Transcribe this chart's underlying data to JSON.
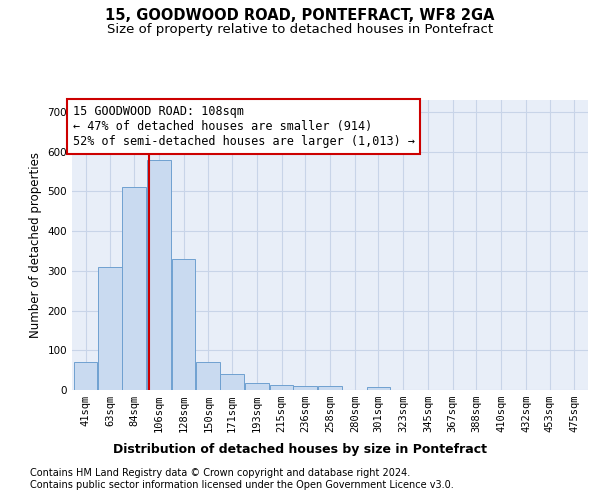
{
  "title": "15, GOODWOOD ROAD, PONTEFRACT, WF8 2GA",
  "subtitle": "Size of property relative to detached houses in Pontefract",
  "xlabel_bottom": "Distribution of detached houses by size in Pontefract",
  "ylabel": "Number of detached properties",
  "footnote1": "Contains HM Land Registry data © Crown copyright and database right 2024.",
  "footnote2": "Contains public sector information licensed under the Open Government Licence v3.0.",
  "annotation_line1": "15 GOODWOOD ROAD: 108sqm",
  "annotation_line2": "← 47% of detached houses are smaller (914)",
  "annotation_line3": "52% of semi-detached houses are larger (1,013) →",
  "property_size": 108,
  "bin_starts": [
    41,
    63,
    84,
    106,
    128,
    150,
    171,
    193,
    215,
    236,
    258,
    280,
    301,
    323,
    345,
    367,
    388,
    410,
    432,
    453,
    475
  ],
  "bar_heights": [
    70,
    310,
    510,
    580,
    330,
    70,
    40,
    18,
    12,
    10,
    10,
    0,
    8,
    0,
    0,
    0,
    0,
    0,
    0,
    0,
    0
  ],
  "bin_width": 22,
  "bar_color": "#c9daf0",
  "bar_edge_color": "#6fa0d0",
  "vline_color": "#cc0000",
  "annotation_box_edge": "#cc0000",
  "annotation_box_face": "#ffffff",
  "grid_color": "#c8d4e8",
  "background_color": "#e8eef8",
  "ylim": [
    0,
    730
  ],
  "yticks": [
    0,
    100,
    200,
    300,
    400,
    500,
    600,
    700
  ],
  "title_fontsize": 10.5,
  "subtitle_fontsize": 9.5,
  "axis_label_fontsize": 8.5,
  "tick_fontsize": 7.5,
  "footnote_fontsize": 7.0,
  "annotation_fontsize": 8.5
}
